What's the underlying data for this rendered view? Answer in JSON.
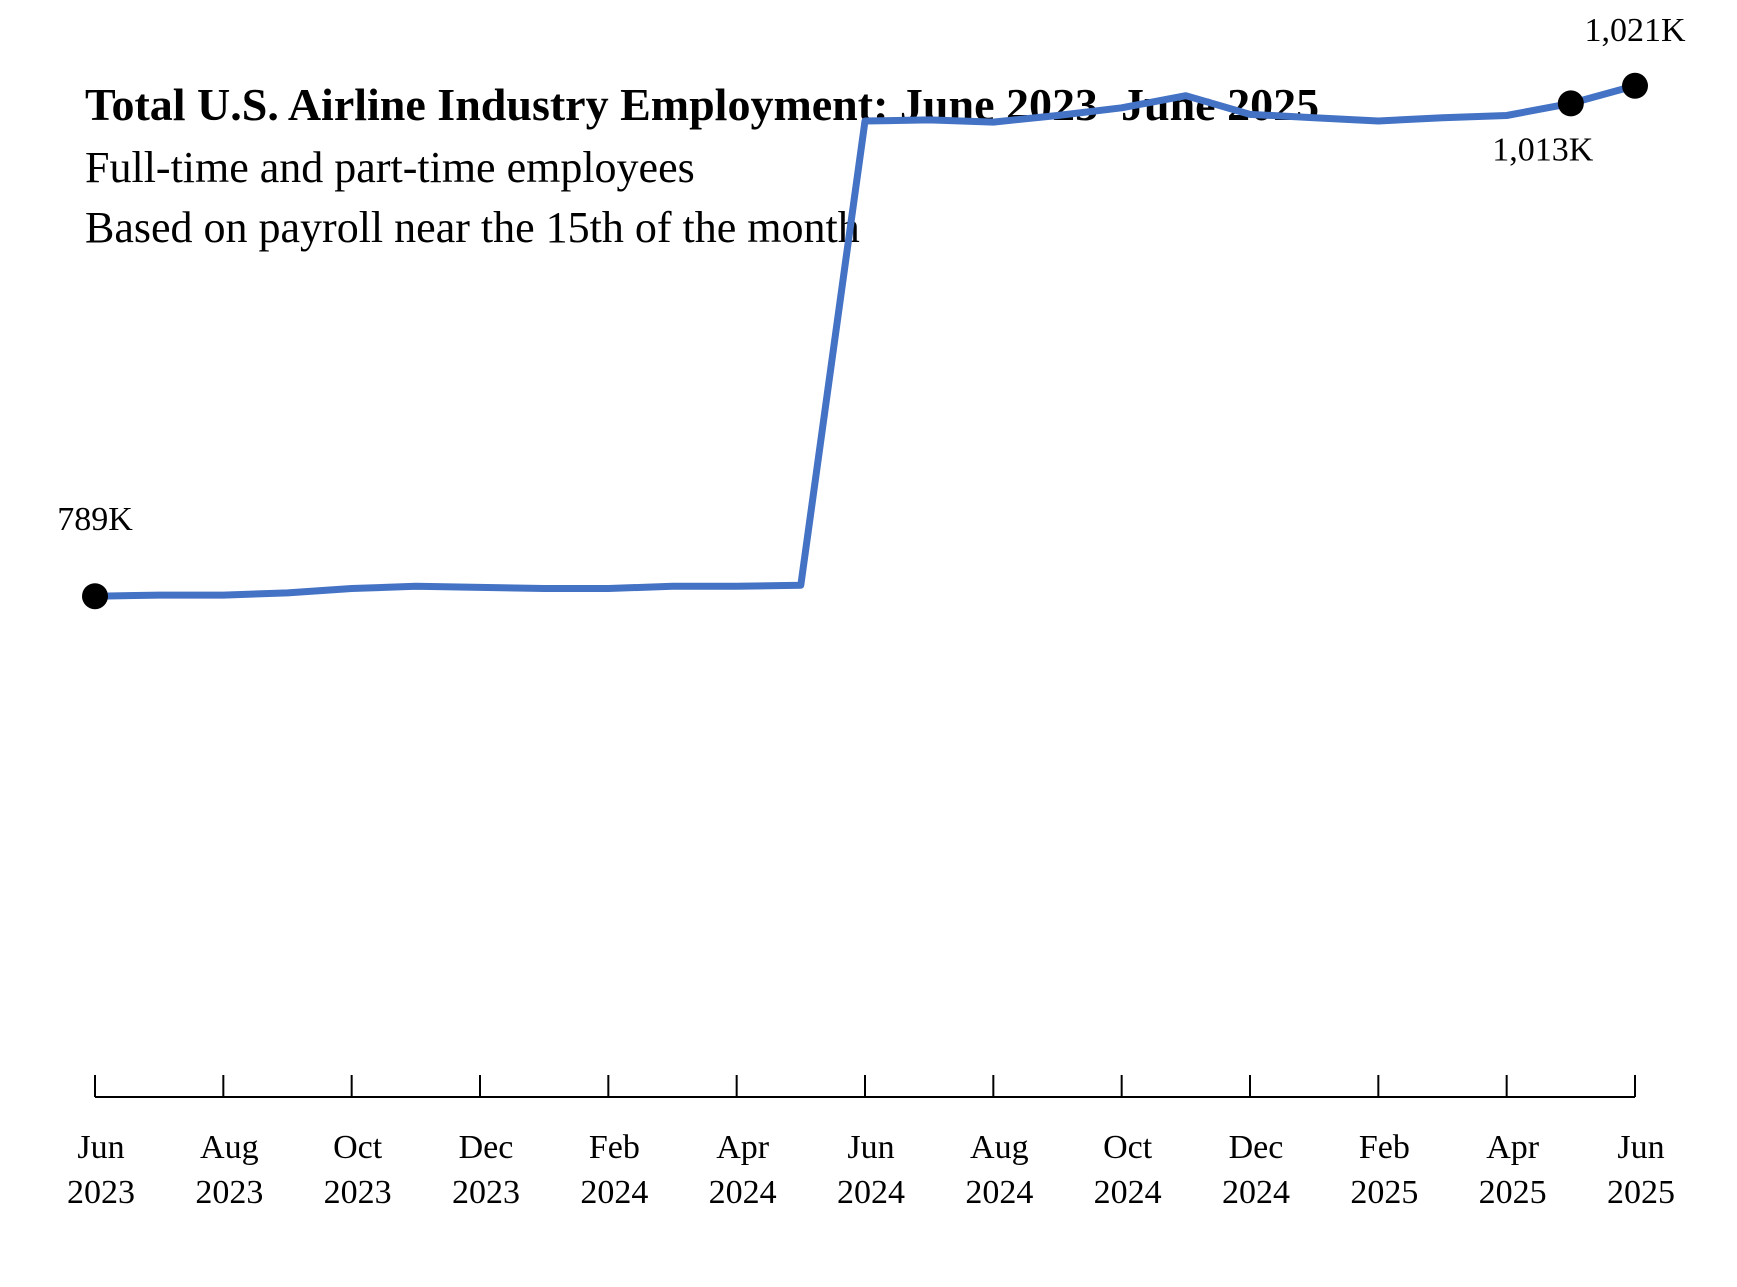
{
  "chart_data": {
    "type": "line",
    "title": "Total U.S. Airline Industry Employment: June 2023–June 2025",
    "subtitles": [
      "Full-time and part-time employees",
      "Based on payroll near the 15th of the month"
    ],
    "xlabel": "",
    "ylabel": "",
    "x": [
      "2023-06",
      "2023-07",
      "2023-08",
      "2023-09",
      "2023-10",
      "2023-11",
      "2023-12",
      "2024-01",
      "2024-02",
      "2024-03",
      "2024-04",
      "2024-05",
      "2024-06",
      "2024-07",
      "2024-08",
      "2024-09",
      "2024-10",
      "2024-11",
      "2024-12",
      "2025-01",
      "2025-02",
      "2025-03",
      "2025-04",
      "2025-05",
      "2025-06"
    ],
    "x_tick_labels": [
      {
        "x": "2023-06",
        "month": "Jun",
        "year": "2023"
      },
      {
        "x": "2023-08",
        "month": "Aug",
        "year": "2023"
      },
      {
        "x": "2023-10",
        "month": "Oct",
        "year": "2023"
      },
      {
        "x": "2023-12",
        "month": "Dec",
        "year": "2023"
      },
      {
        "x": "2024-02",
        "month": "Feb",
        "year": "2024"
      },
      {
        "x": "2024-04",
        "month": "Apr",
        "year": "2024"
      },
      {
        "x": "2024-06",
        "month": "Jun",
        "year": "2024"
      },
      {
        "x": "2024-08",
        "month": "Aug",
        "year": "2024"
      },
      {
        "x": "2024-10",
        "month": "Oct",
        "year": "2024"
      },
      {
        "x": "2024-12",
        "month": "Dec",
        "year": "2024"
      },
      {
        "x": "2025-02",
        "month": "Feb",
        "year": "2025"
      },
      {
        "x": "2025-04",
        "month": "Apr",
        "year": "2025"
      },
      {
        "x": "2025-06",
        "month": "Jun",
        "year": "2025"
      }
    ],
    "series": [
      {
        "color": "#4472C4",
        "values": [
          789,
          789.5,
          789.5,
          790.5,
          792.5,
          793.5,
          793,
          792.5,
          792.5,
          793.5,
          793.5,
          794,
          1005,
          1005.5,
          1004.5,
          1007.5,
          1011,
          1016.5,
          1008,
          1006.5,
          1005,
          1006.5,
          1007.5,
          1013,
          1021
        ]
      }
    ],
    "markers": [
      {
        "x": "2023-06",
        "label": "789K"
      },
      {
        "x": "2025-05",
        "label": "1,013K"
      },
      {
        "x": "2025-06",
        "label": "1,021K"
      }
    ],
    "ylim": [
      560,
      1060
    ],
    "grid": false,
    "legend": "none",
    "y_axis_visible": false
  }
}
